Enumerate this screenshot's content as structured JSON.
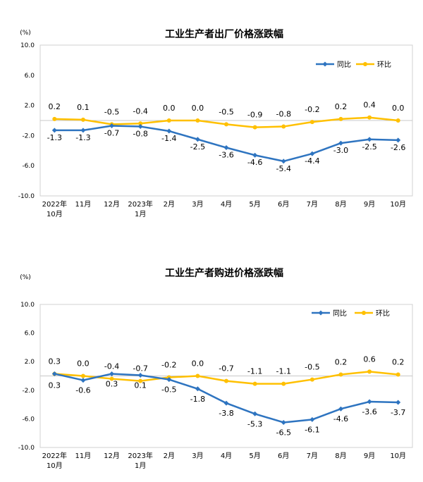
{
  "chart_data": [
    {
      "type": "line",
      "title": "工业生产者出厂价格涨跌幅",
      "unit": "(%)",
      "categories": [
        [
          "2022年",
          "10月"
        ],
        [
          "11月"
        ],
        [
          "12月"
        ],
        [
          "2023年",
          "1月"
        ],
        [
          "2月"
        ],
        [
          "3月"
        ],
        [
          "4月"
        ],
        [
          "5月"
        ],
        [
          "6月"
        ],
        [
          "7月"
        ],
        [
          "8月"
        ],
        [
          "9月"
        ],
        [
          "10月"
        ]
      ],
      "ylim": [
        -10.0,
        10.0
      ],
      "yticks": [
        "10.0",
        "6.0",
        "2.0",
        "-2.0",
        "-6.0",
        "-10.0"
      ],
      "ytick_values": [
        10,
        6,
        2,
        -2,
        -6,
        -10
      ],
      "legend_position": "top-right",
      "series": [
        {
          "name": "同比",
          "color": "#2E74C0",
          "values": [
            -1.3,
            -1.3,
            -0.7,
            -0.8,
            -1.4,
            -2.5,
            -3.6,
            -4.6,
            -5.4,
            -4.4,
            -3.0,
            -2.5,
            -2.6
          ],
          "labels": [
            "-1.3",
            "-1.3",
            "-0.7",
            "-0.8",
            "-1.4",
            "-2.5",
            "-3.6",
            "-4.6",
            "-5.4",
            "-4.4",
            "-3.0",
            "-2.5",
            "-2.6"
          ]
        },
        {
          "name": "环比",
          "color": "#FFC000",
          "values": [
            0.2,
            0.1,
            -0.5,
            -0.4,
            0.0,
            0.0,
            -0.5,
            -0.9,
            -0.8,
            -0.2,
            0.2,
            0.4,
            0.0
          ],
          "labels": [
            "0.2",
            "0.1",
            "-0.5",
            "-0.4",
            "0.0",
            "0.0",
            "-0.5",
            "-0.9",
            "-0.8",
            "-0.2",
            "0.2",
            "0.4",
            "0.0"
          ]
        }
      ]
    },
    {
      "type": "line",
      "title": "工业生产者购进价格涨跌幅",
      "unit": "(%)",
      "categories": [
        [
          "2022年",
          "10月"
        ],
        [
          "11月"
        ],
        [
          "12月"
        ],
        [
          "2023年",
          "1月"
        ],
        [
          "2月"
        ],
        [
          "3月"
        ],
        [
          "4月"
        ],
        [
          "5月"
        ],
        [
          "6月"
        ],
        [
          "7月"
        ],
        [
          "8月"
        ],
        [
          "9月"
        ],
        [
          "10月"
        ]
      ],
      "ylim": [
        -10.0,
        10.0
      ],
      "yticks": [
        "10.0",
        "6.0",
        "2.0",
        "-2.0",
        "-6.0",
        "-10.0"
      ],
      "ytick_values": [
        10,
        6,
        2,
        -2,
        -6,
        -10
      ],
      "legend_position": "top-right",
      "series": [
        {
          "name": "同比",
          "color": "#2E74C0",
          "values": [
            0.3,
            -0.6,
            0.3,
            0.1,
            -0.5,
            -1.8,
            -3.8,
            -5.3,
            -6.5,
            -6.1,
            -4.6,
            -3.6,
            -3.7
          ],
          "labels": [
            "0.3",
            "-0.6",
            "0.3",
            "0.1",
            "-0.5",
            "-1.8",
            "-3.8",
            "-5.3",
            "-6.5",
            "-6.1",
            "-4.6",
            "-3.6",
            "-3.7"
          ]
        },
        {
          "name": "环比",
          "color": "#FFC000",
          "values": [
            0.3,
            0.0,
            -0.4,
            -0.7,
            -0.2,
            0.0,
            -0.7,
            -1.1,
            -1.1,
            -0.5,
            0.2,
            0.6,
            0.2
          ],
          "labels": [
            "0.3",
            "0.0",
            "-0.4",
            "-0.7",
            "-0.2",
            "0.0",
            "-0.7",
            "-1.1",
            "-1.1",
            "-0.5",
            "0.2",
            "0.6",
            "0.2"
          ]
        }
      ]
    }
  ]
}
